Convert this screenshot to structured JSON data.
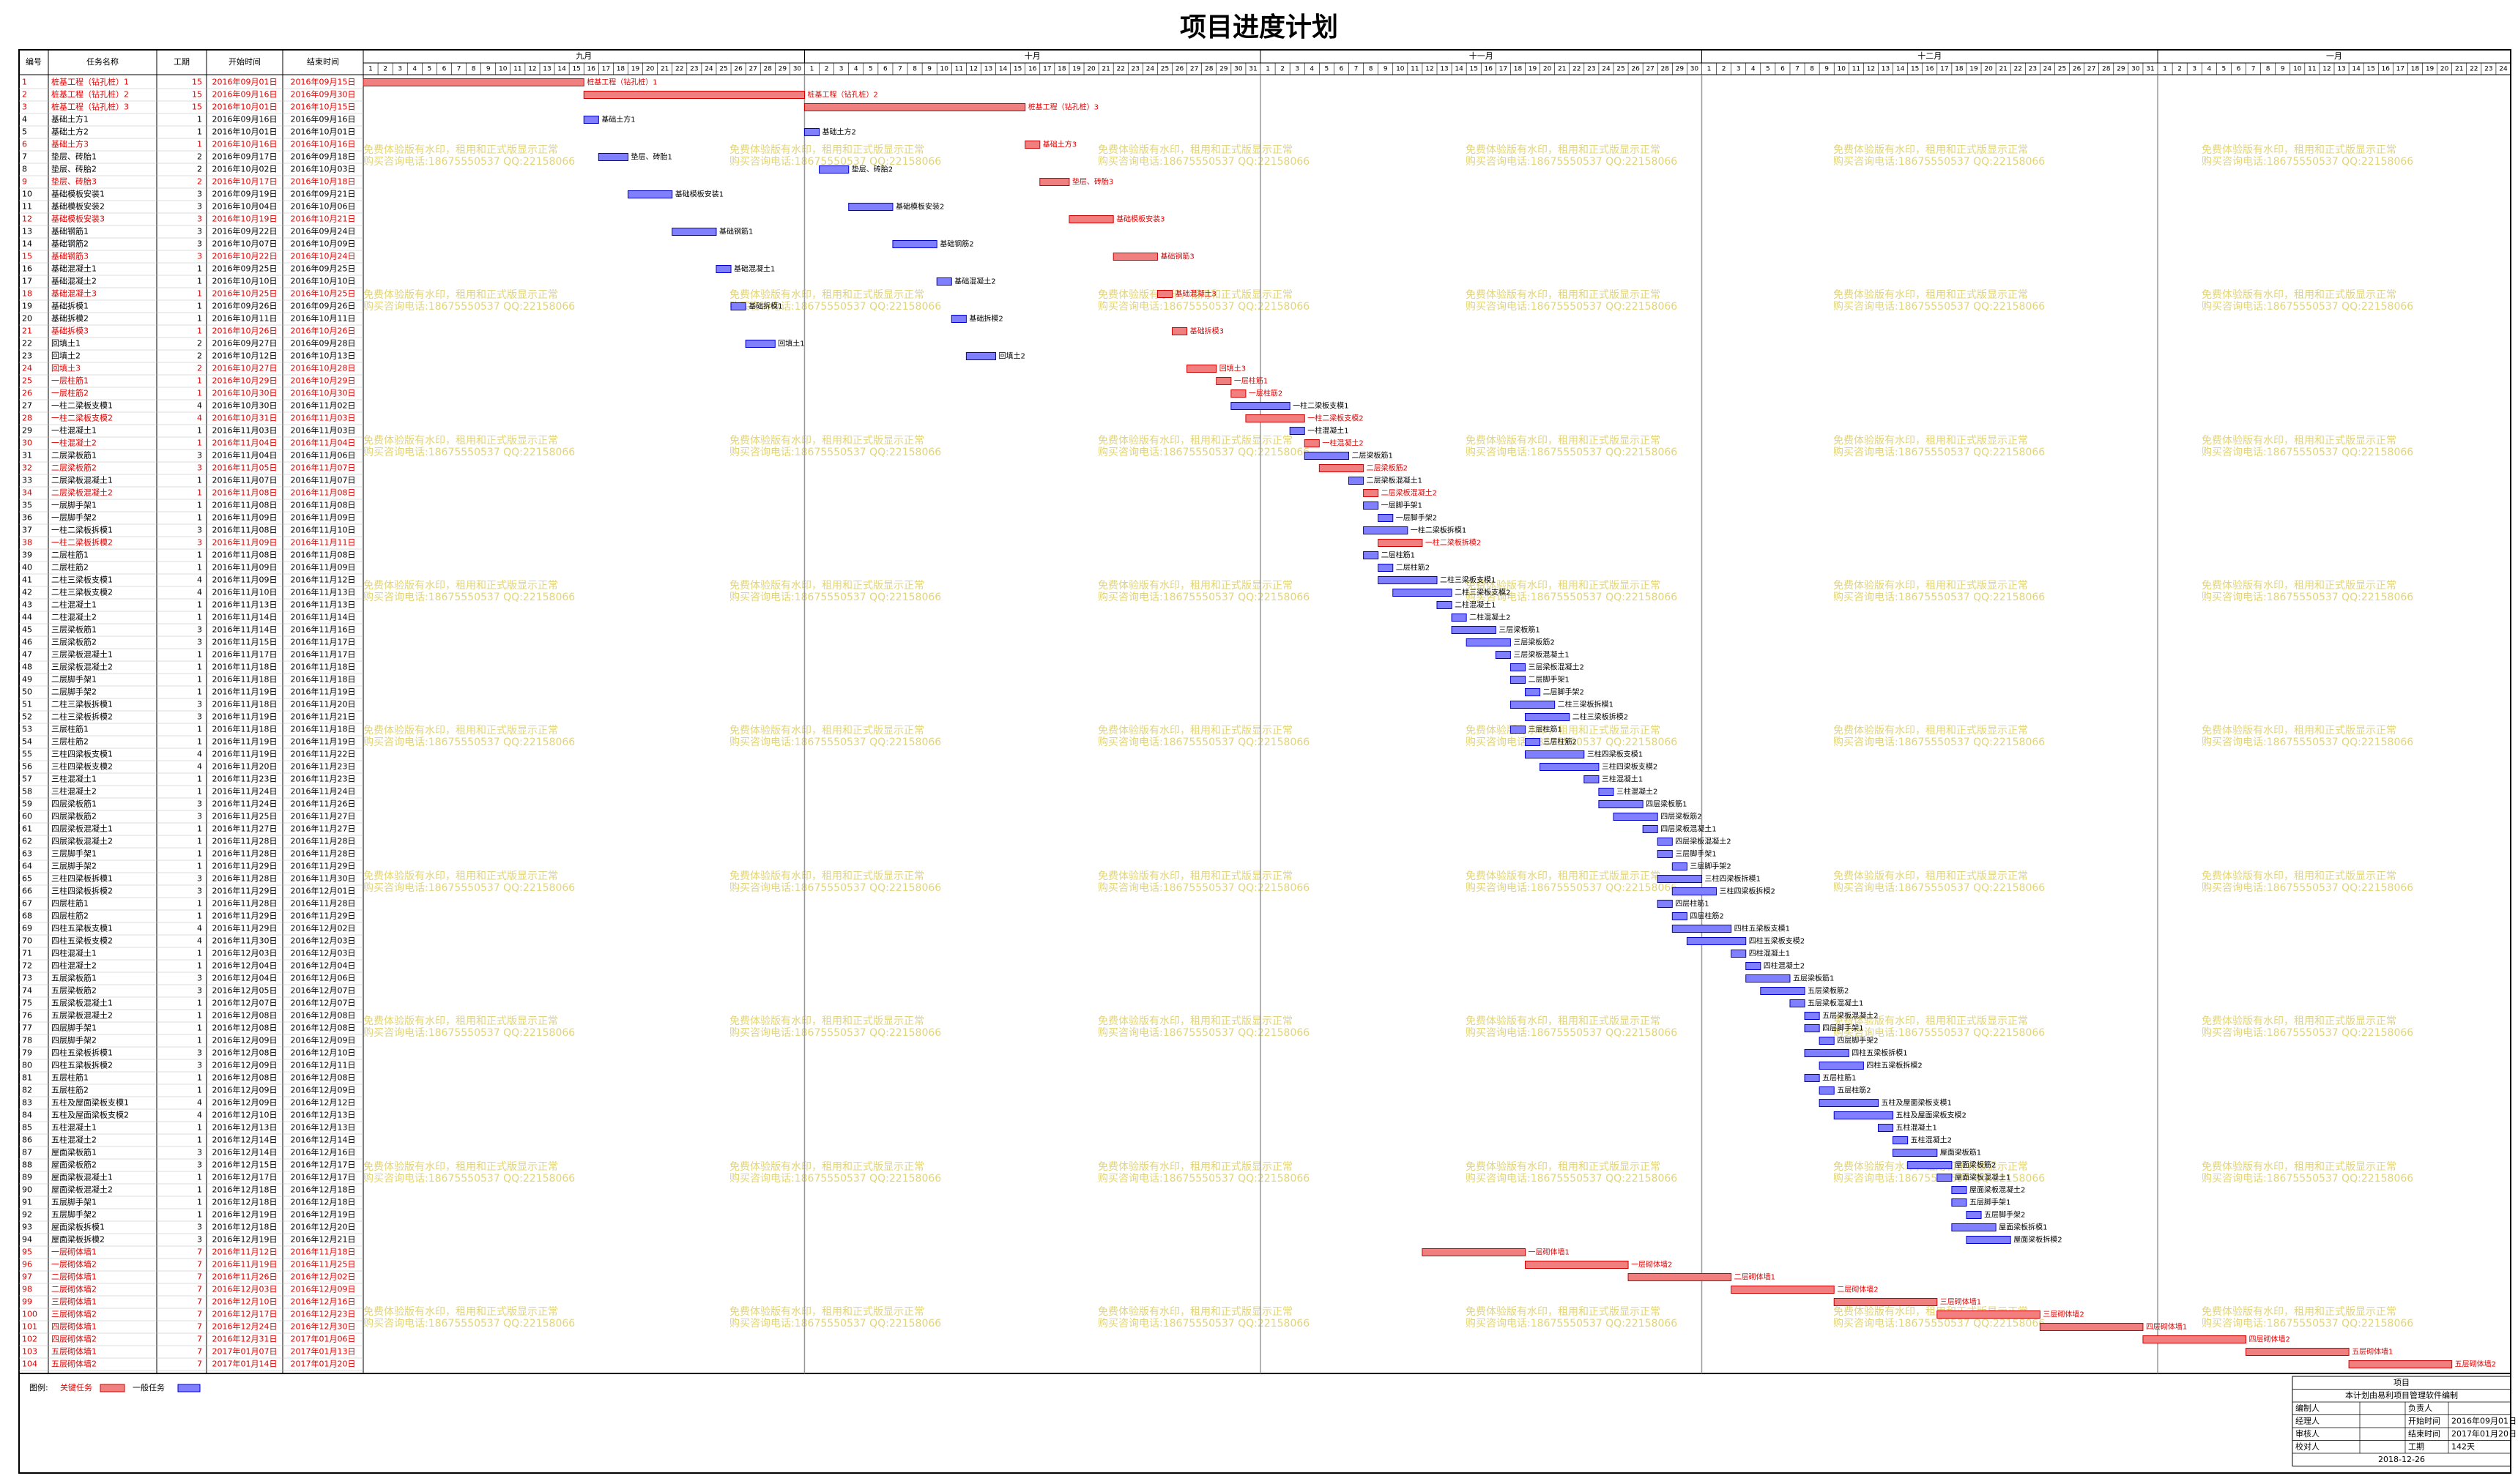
{
  "chart_data": {
    "type": "gantt",
    "title": "项目进度计划",
    "columns": [
      "编号",
      "任务名称",
      "工期",
      "开始时间",
      "结束时间"
    ],
    "months": [
      {
        "label": "九月",
        "days": [
          1,
          2,
          3,
          4,
          5,
          6,
          7,
          8,
          9,
          10,
          11,
          12,
          13,
          14,
          15,
          16,
          17,
          18,
          19,
          20,
          21,
          22,
          23,
          24,
          25,
          26,
          27,
          28,
          29,
          30
        ]
      },
      {
        "label": "十月",
        "days": [
          1,
          2,
          3,
          4,
          5,
          6,
          7,
          8,
          9,
          10,
          11,
          12,
          13,
          14,
          15,
          16,
          17,
          18,
          19,
          20,
          21,
          22,
          23,
          24,
          25,
          26,
          27,
          28,
          29,
          30,
          31
        ]
      },
      {
        "label": "十一月",
        "days": [
          1,
          2,
          3,
          4,
          5,
          6,
          7,
          8,
          9,
          10,
          11,
          12,
          13,
          14,
          15,
          16,
          17,
          18,
          19,
          20,
          21,
          22,
          23,
          24,
          25,
          26,
          27,
          28,
          29,
          30
        ]
      },
      {
        "label": "十二月",
        "days": [
          1,
          2,
          3,
          4,
          5,
          6,
          7,
          8,
          9,
          10,
          11,
          12,
          13,
          14,
          15,
          16,
          17,
          18,
          19,
          20,
          21,
          22,
          23,
          24,
          25,
          26,
          27,
          28,
          29,
          30,
          31
        ]
      },
      {
        "label": "一月",
        "days": [
          1,
          2,
          3,
          4,
          5,
          6,
          7,
          8,
          9,
          10,
          11,
          12,
          13,
          14,
          15,
          16,
          17,
          18,
          19,
          20,
          21,
          22,
          23,
          24
        ]
      }
    ],
    "critical_color": "#f08080",
    "critical_stroke": "#d00000",
    "normal_color": "#8080ff",
    "normal_stroke": "#0000d0",
    "tasks": [
      {
        "id": 1,
        "name": "桩基工程（钻孔桩）1",
        "duration": 15,
        "start": "2016年09月01日",
        "end": "2016年09月15日",
        "critical": true
      },
      {
        "id": 2,
        "name": "桩基工程（钻孔桩）2",
        "duration": 15,
        "start": "2016年09月16日",
        "end": "2016年09月30日",
        "critical": true
      },
      {
        "id": 3,
        "name": "桩基工程（钻孔桩）3",
        "duration": 15,
        "start": "2016年10月01日",
        "end": "2016年10月15日",
        "critical": true
      },
      {
        "id": 4,
        "name": "基础土方1",
        "duration": 1,
        "start": "2016年09月16日",
        "end": "2016年09月16日"
      },
      {
        "id": 5,
        "name": "基础土方2",
        "duration": 1,
        "start": "2016年10月01日",
        "end": "2016年10月01日"
      },
      {
        "id": 6,
        "name": "基础土方3",
        "duration": 1,
        "start": "2016年10月16日",
        "end": "2016年10月16日",
        "critical": true
      },
      {
        "id": 7,
        "name": "垫层、砖胎1",
        "duration": 2,
        "start": "2016年09月17日",
        "end": "2016年09月18日"
      },
      {
        "id": 8,
        "name": "垫层、砖胎2",
        "duration": 2,
        "start": "2016年10月02日",
        "end": "2016年10月03日"
      },
      {
        "id": 9,
        "name": "垫层、砖胎3",
        "duration": 2,
        "start": "2016年10月17日",
        "end": "2016年10月18日",
        "critical": true
      },
      {
        "id": 10,
        "name": "基础模板安装1",
        "duration": 3,
        "start": "2016年09月19日",
        "end": "2016年09月21日"
      },
      {
        "id": 11,
        "name": "基础模板安装2",
        "duration": 3,
        "start": "2016年10月04日",
        "end": "2016年10月06日"
      },
      {
        "id": 12,
        "name": "基础模板安装3",
        "duration": 3,
        "start": "2016年10月19日",
        "end": "2016年10月21日",
        "critical": true
      },
      {
        "id": 13,
        "name": "基础钢筋1",
        "duration": 3,
        "start": "2016年09月22日",
        "end": "2016年09月24日"
      },
      {
        "id": 14,
        "name": "基础钢筋2",
        "duration": 3,
        "start": "2016年10月07日",
        "end": "2016年10月09日"
      },
      {
        "id": 15,
        "name": "基础钢筋3",
        "duration": 3,
        "start": "2016年10月22日",
        "end": "2016年10月24日",
        "critical": true
      },
      {
        "id": 16,
        "name": "基础混凝土1",
        "duration": 1,
        "start": "2016年09月25日",
        "end": "2016年09月25日"
      },
      {
        "id": 17,
        "name": "基础混凝土2",
        "duration": 1,
        "start": "2016年10月10日",
        "end": "2016年10月10日"
      },
      {
        "id": 18,
        "name": "基础混凝土3",
        "duration": 1,
        "start": "2016年10月25日",
        "end": "2016年10月25日",
        "critical": true
      },
      {
        "id": 19,
        "name": "基础拆模1",
        "duration": 1,
        "start": "2016年09月26日",
        "end": "2016年09月26日"
      },
      {
        "id": 20,
        "name": "基础拆模2",
        "duration": 1,
        "start": "2016年10月11日",
        "end": "2016年10月11日"
      },
      {
        "id": 21,
        "name": "基础拆模3",
        "duration": 1,
        "start": "2016年10月26日",
        "end": "2016年10月26日",
        "critical": true
      },
      {
        "id": 22,
        "name": "回填土1",
        "duration": 2,
        "start": "2016年09月27日",
        "end": "2016年09月28日"
      },
      {
        "id": 23,
        "name": "回填土2",
        "duration": 2,
        "start": "2016年10月12日",
        "end": "2016年10月13日"
      },
      {
        "id": 24,
        "name": "回填土3",
        "duration": 2,
        "start": "2016年10月27日",
        "end": "2016年10月28日",
        "critical": true
      },
      {
        "id": 25,
        "name": "一层柱筋1",
        "duration": 1,
        "start": "2016年10月29日",
        "end": "2016年10月29日",
        "critical": true
      },
      {
        "id": 26,
        "name": "一层柱筋2",
        "duration": 1,
        "start": "2016年10月30日",
        "end": "2016年10月30日",
        "critical": true
      },
      {
        "id": 27,
        "name": "一柱二梁板支模1",
        "duration": 4,
        "start": "2016年10月30日",
        "end": "2016年11月02日"
      },
      {
        "id": 28,
        "name": "一柱二梁板支模2",
        "duration": 4,
        "start": "2016年10月31日",
        "end": "2016年11月03日",
        "critical": true
      },
      {
        "id": 29,
        "name": "一柱混凝土1",
        "duration": 1,
        "start": "2016年11月03日",
        "end": "2016年11月03日"
      },
      {
        "id": 30,
        "name": "一柱混凝土2",
        "duration": 1,
        "start": "2016年11月04日",
        "end": "2016年11月04日",
        "critical": true
      },
      {
        "id": 31,
        "name": "二层梁板筋1",
        "duration": 3,
        "start": "2016年11月04日",
        "end": "2016年11月06日"
      },
      {
        "id": 32,
        "name": "二层梁板筋2",
        "duration": 3,
        "start": "2016年11月05日",
        "end": "2016年11月07日",
        "critical": true
      },
      {
        "id": 33,
        "name": "二层梁板混凝土1",
        "duration": 1,
        "start": "2016年11月07日",
        "end": "2016年11月07日"
      },
      {
        "id": 34,
        "name": "二层梁板混凝土2",
        "duration": 1,
        "start": "2016年11月08日",
        "end": "2016年11月08日",
        "critical": true
      },
      {
        "id": 35,
        "name": "一层脚手架1",
        "duration": 1,
        "start": "2016年11月08日",
        "end": "2016年11月08日"
      },
      {
        "id": 36,
        "name": "一层脚手架2",
        "duration": 1,
        "start": "2016年11月09日",
        "end": "2016年11月09日"
      },
      {
        "id": 37,
        "name": "一柱二梁板拆模1",
        "duration": 3,
        "start": "2016年11月08日",
        "end": "2016年11月10日"
      },
      {
        "id": 38,
        "name": "一柱二梁板拆模2",
        "duration": 3,
        "start": "2016年11月09日",
        "end": "2016年11月11日",
        "critical": true
      },
      {
        "id": 39,
        "name": "二层柱筋1",
        "duration": 1,
        "start": "2016年11月08日",
        "end": "2016年11月08日"
      },
      {
        "id": 40,
        "name": "二层柱筋2",
        "duration": 1,
        "start": "2016年11月09日",
        "end": "2016年11月09日"
      },
      {
        "id": 41,
        "name": "二柱三梁板支模1",
        "duration": 4,
        "start": "2016年11月09日",
        "end": "2016年11月12日"
      },
      {
        "id": 42,
        "name": "二柱三梁板支模2",
        "duration": 4,
        "start": "2016年11月10日",
        "end": "2016年11月13日"
      },
      {
        "id": 43,
        "name": "二柱混凝土1",
        "duration": 1,
        "start": "2016年11月13日",
        "end": "2016年11月13日"
      },
      {
        "id": 44,
        "name": "二柱混凝土2",
        "duration": 1,
        "start": "2016年11月14日",
        "end": "2016年11月14日"
      },
      {
        "id": 45,
        "name": "三层梁板筋1",
        "duration": 3,
        "start": "2016年11月14日",
        "end": "2016年11月16日"
      },
      {
        "id": 46,
        "name": "三层梁板筋2",
        "duration": 3,
        "start": "2016年11月15日",
        "end": "2016年11月17日"
      },
      {
        "id": 47,
        "name": "三层梁板混凝土1",
        "duration": 1,
        "start": "2016年11月17日",
        "end": "2016年11月17日"
      },
      {
        "id": 48,
        "name": "三层梁板混凝土2",
        "duration": 1,
        "start": "2016年11月18日",
        "end": "2016年11月18日"
      },
      {
        "id": 49,
        "name": "二层脚手架1",
        "duration": 1,
        "start": "2016年11月18日",
        "end": "2016年11月18日"
      },
      {
        "id": 50,
        "name": "二层脚手架2",
        "duration": 1,
        "start": "2016年11月19日",
        "end": "2016年11月19日"
      },
      {
        "id": 51,
        "name": "二柱三梁板拆模1",
        "duration": 3,
        "start": "2016年11月18日",
        "end": "2016年11月20日"
      },
      {
        "id": 52,
        "name": "二柱三梁板拆模2",
        "duration": 3,
        "start": "2016年11月19日",
        "end": "2016年11月21日"
      },
      {
        "id": 53,
        "name": "三层柱筋1",
        "duration": 1,
        "start": "2016年11月18日",
        "end": "2016年11月18日"
      },
      {
        "id": 54,
        "name": "三层柱筋2",
        "duration": 1,
        "start": "2016年11月19日",
        "end": "2016年11月19日"
      },
      {
        "id": 55,
        "name": "三柱四梁板支模1",
        "duration": 4,
        "start": "2016年11月19日",
        "end": "2016年11月22日"
      },
      {
        "id": 56,
        "name": "三柱四梁板支模2",
        "duration": 4,
        "start": "2016年11月20日",
        "end": "2016年11月23日"
      },
      {
        "id": 57,
        "name": "三柱混凝土1",
        "duration": 1,
        "start": "2016年11月23日",
        "end": "2016年11月23日"
      },
      {
        "id": 58,
        "name": "三柱混凝土2",
        "duration": 1,
        "start": "2016年11月24日",
        "end": "2016年11月24日"
      },
      {
        "id": 59,
        "name": "四层梁板筋1",
        "duration": 3,
        "start": "2016年11月24日",
        "end": "2016年11月26日"
      },
      {
        "id": 60,
        "name": "四层梁板筋2",
        "duration": 3,
        "start": "2016年11月25日",
        "end": "2016年11月27日"
      },
      {
        "id": 61,
        "name": "四层梁板混凝土1",
        "duration": 1,
        "start": "2016年11月27日",
        "end": "2016年11月27日"
      },
      {
        "id": 62,
        "name": "四层梁板混凝土2",
        "duration": 1,
        "start": "2016年11月28日",
        "end": "2016年11月28日"
      },
      {
        "id": 63,
        "name": "三层脚手架1",
        "duration": 1,
        "start": "2016年11月28日",
        "end": "2016年11月28日"
      },
      {
        "id": 64,
        "name": "三层脚手架2",
        "duration": 1,
        "start": "2016年11月29日",
        "end": "2016年11月29日"
      },
      {
        "id": 65,
        "name": "三柱四梁板拆模1",
        "duration": 3,
        "start": "2016年11月28日",
        "end": "2016年11月30日"
      },
      {
        "id": 66,
        "name": "三柱四梁板拆模2",
        "duration": 3,
        "start": "2016年11月29日",
        "end": "2016年12月01日"
      },
      {
        "id": 67,
        "name": "四层柱筋1",
        "duration": 1,
        "start": "2016年11月28日",
        "end": "2016年11月28日"
      },
      {
        "id": 68,
        "name": "四层柱筋2",
        "duration": 1,
        "start": "2016年11月29日",
        "end": "2016年11月29日"
      },
      {
        "id": 69,
        "name": "四柱五梁板支模1",
        "duration": 4,
        "start": "2016年11月29日",
        "end": "2016年12月02日"
      },
      {
        "id": 70,
        "name": "四柱五梁板支模2",
        "duration": 4,
        "start": "2016年11月30日",
        "end": "2016年12月03日"
      },
      {
        "id": 71,
        "name": "四柱混凝土1",
        "duration": 1,
        "start": "2016年12月03日",
        "end": "2016年12月03日"
      },
      {
        "id": 72,
        "name": "四柱混凝土2",
        "duration": 1,
        "start": "2016年12月04日",
        "end": "2016年12月04日"
      },
      {
        "id": 73,
        "name": "五层梁板筋1",
        "duration": 3,
        "start": "2016年12月04日",
        "end": "2016年12月06日"
      },
      {
        "id": 74,
        "name": "五层梁板筋2",
        "duration": 3,
        "start": "2016年12月05日",
        "end": "2016年12月07日"
      },
      {
        "id": 75,
        "name": "五层梁板混凝土1",
        "duration": 1,
        "start": "2016年12月07日",
        "end": "2016年12月07日"
      },
      {
        "id": 76,
        "name": "五层梁板混凝土2",
        "duration": 1,
        "start": "2016年12月08日",
        "end": "2016年12月08日"
      },
      {
        "id": 77,
        "name": "四层脚手架1",
        "duration": 1,
        "start": "2016年12月08日",
        "end": "2016年12月08日"
      },
      {
        "id": 78,
        "name": "四层脚手架2",
        "duration": 1,
        "start": "2016年12月09日",
        "end": "2016年12月09日"
      },
      {
        "id": 79,
        "name": "四柱五梁板拆模1",
        "duration": 3,
        "start": "2016年12月08日",
        "end": "2016年12月10日"
      },
      {
        "id": 80,
        "name": "四柱五梁板拆模2",
        "duration": 3,
        "start": "2016年12月09日",
        "end": "2016年12月11日"
      },
      {
        "id": 81,
        "name": "五层柱筋1",
        "duration": 1,
        "start": "2016年12月08日",
        "end": "2016年12月08日"
      },
      {
        "id": 82,
        "name": "五层柱筋2",
        "duration": 1,
        "start": "2016年12月09日",
        "end": "2016年12月09日"
      },
      {
        "id": 83,
        "name": "五柱及屋面梁板支模1",
        "duration": 4,
        "start": "2016年12月09日",
        "end": "2016年12月12日"
      },
      {
        "id": 84,
        "name": "五柱及屋面梁板支模2",
        "duration": 4,
        "start": "2016年12月10日",
        "end": "2016年12月13日"
      },
      {
        "id": 85,
        "name": "五柱混凝土1",
        "duration": 1,
        "start": "2016年12月13日",
        "end": "2016年12月13日"
      },
      {
        "id": 86,
        "name": "五柱混凝土2",
        "duration": 1,
        "start": "2016年12月14日",
        "end": "2016年12月14日"
      },
      {
        "id": 87,
        "name": "屋面梁板筋1",
        "duration": 3,
        "start": "2016年12月14日",
        "end": "2016年12月16日"
      },
      {
        "id": 88,
        "name": "屋面梁板筋2",
        "duration": 3,
        "start": "2016年12月15日",
        "end": "2016年12月17日"
      },
      {
        "id": 89,
        "name": "屋面梁板混凝土1",
        "duration": 1,
        "start": "2016年12月17日",
        "end": "2016年12月17日"
      },
      {
        "id": 90,
        "name": "屋面梁板混凝土2",
        "duration": 1,
        "start": "2016年12月18日",
        "end": "2016年12月18日"
      },
      {
        "id": 91,
        "name": "五层脚手架1",
        "duration": 1,
        "start": "2016年12月18日",
        "end": "2016年12月18日"
      },
      {
        "id": 92,
        "name": "五层脚手架2",
        "duration": 1,
        "start": "2016年12月19日",
        "end": "2016年12月19日"
      },
      {
        "id": 93,
        "name": "屋面梁板拆模1",
        "duration": 3,
        "start": "2016年12月18日",
        "end": "2016年12月20日"
      },
      {
        "id": 94,
        "name": "屋面梁板拆模2",
        "duration": 3,
        "start": "2016年12月19日",
        "end": "2016年12月21日"
      },
      {
        "id": 95,
        "name": "一层砌体墙1",
        "duration": 7,
        "start": "2016年11月12日",
        "end": "2016年11月18日",
        "critical": true
      },
      {
        "id": 96,
        "name": "一层砌体墙2",
        "duration": 7,
        "start": "2016年11月19日",
        "end": "2016年11月25日",
        "critical": true
      },
      {
        "id": 97,
        "name": "二层砌体墙1",
        "duration": 7,
        "start": "2016年11月26日",
        "end": "2016年12月02日",
        "critical": true
      },
      {
        "id": 98,
        "name": "二层砌体墙2",
        "duration": 7,
        "start": "2016年12月03日",
        "end": "2016年12月09日",
        "critical": true
      },
      {
        "id": 99,
        "name": "三层砌体墙1",
        "duration": 7,
        "start": "2016年12月10日",
        "end": "2016年12月16日",
        "critical": true
      },
      {
        "id": 100,
        "name": "三层砌体墙2",
        "duration": 7,
        "start": "2016年12月17日",
        "end": "2016年12月23日",
        "critical": true
      },
      {
        "id": 101,
        "name": "四层砌体墙1",
        "duration": 7,
        "start": "2016年12月24日",
        "end": "2016年12月30日",
        "critical": true
      },
      {
        "id": 102,
        "name": "四层砌体墙2",
        "duration": 7,
        "start": "2016年12月31日",
        "end": "2017年01月06日",
        "critical": true
      },
      {
        "id": 103,
        "name": "五层砌体墙1",
        "duration": 7,
        "start": "2017年01月07日",
        "end": "2017年01月13日",
        "critical": true
      },
      {
        "id": 104,
        "name": "五层砌体墙2",
        "duration": 7,
        "start": "2017年01月14日",
        "end": "2017年01月20日",
        "critical": true
      }
    ],
    "watermark": [
      "免费体验版有水印，租用和正式版显示正常",
      "购买咨询电话:18675550537 QQ:22158066"
    ],
    "legend": {
      "label": "图例:",
      "critical": "关键任务",
      "normal": "一般任务"
    },
    "info": {
      "project": "项目",
      "note": "本计划由易利项目管理软件编制",
      "rows": [
        [
          "编制人",
          "负责人"
        ],
        [
          "经理人",
          "开始时间",
          "2016年09月01日"
        ],
        [
          "审核人",
          "结束时间",
          "2017年01月20日"
        ],
        [
          "校对人",
          "工期",
          "142天"
        ]
      ],
      "date": "2018-12-26"
    }
  }
}
